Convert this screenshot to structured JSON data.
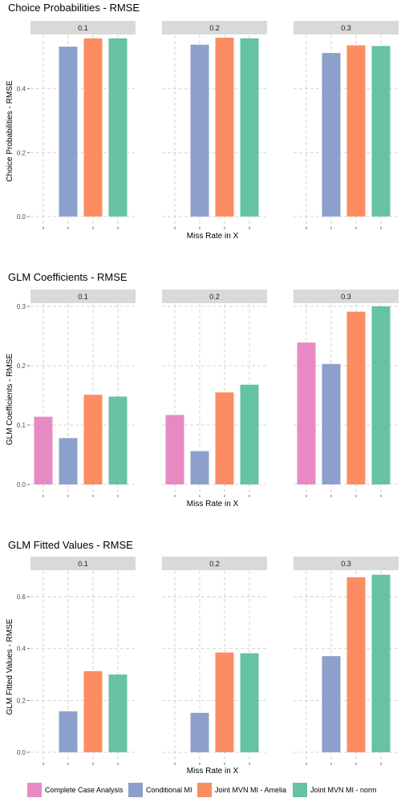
{
  "colors": {
    "Complete Case Analysis": "#e78ac3",
    "Conditional MI": "#8da0cb",
    "Joint MVN MI - Amelia": "#fc8d62",
    "Joint MVN MI - norm": "#66c2a5"
  },
  "legend": {
    "items": [
      "Complete Case Analysis",
      "Conditional MI",
      "Joint MVN MI - Amelia",
      "Joint MVN MI - norm"
    ]
  },
  "chart_data": [
    {
      "type": "bar",
      "title": "Choice Probabilities - RMSE",
      "ylabel": "Choice Probabilities - RMSE",
      "xlabel": "Miss Rate in X",
      "ylim": [
        0,
        0.56
      ],
      "yticks": [
        "0.0",
        "0.2",
        "0.4"
      ],
      "ytick_values": [
        0,
        0.2,
        0.4
      ],
      "panels": [
        {
          "label": "0.1",
          "values": [
            null,
            0.532,
            0.558,
            0.558
          ]
        },
        {
          "label": "0.2",
          "values": [
            null,
            0.538,
            0.56,
            0.558
          ]
        },
        {
          "label": "0.3",
          "values": [
            null,
            0.512,
            0.536,
            0.534
          ]
        }
      ]
    },
    {
      "type": "bar",
      "title": "GLM Coefficients - RMSE",
      "ylabel": "GLM Coefficients - RMSE",
      "xlabel": "Miss Rate in X",
      "ylim": [
        0,
        0.3
      ],
      "yticks": [
        "0.0",
        "0.1",
        "0.2",
        "0.3"
      ],
      "ytick_values": [
        0,
        0.1,
        0.2,
        0.3
      ],
      "panels": [
        {
          "label": "0.1",
          "values": [
            0.114,
            0.078,
            0.151,
            0.148
          ]
        },
        {
          "label": "0.2",
          "values": [
            0.117,
            0.056,
            0.155,
            0.168
          ]
        },
        {
          "label": "0.3",
          "values": [
            0.239,
            0.203,
            0.291,
            0.3
          ]
        }
      ]
    },
    {
      "type": "bar",
      "title": "GLM Fitted Values - RMSE",
      "ylabel": "GLM Fitted Values - RMSE",
      "xlabel": "Miss Rate in X",
      "ylim": [
        0,
        0.69
      ],
      "yticks": [
        "0.0",
        "0.2",
        "0.4",
        "0.6"
      ],
      "ytick_values": [
        0,
        0.2,
        0.4,
        0.6
      ],
      "panels": [
        {
          "label": "0.1",
          "values": [
            null,
            0.158,
            0.313,
            0.3
          ]
        },
        {
          "label": "0.2",
          "values": [
            null,
            0.152,
            0.385,
            0.382
          ]
        },
        {
          "label": "0.3",
          "values": [
            null,
            0.371,
            0.675,
            0.685
          ]
        }
      ]
    }
  ]
}
